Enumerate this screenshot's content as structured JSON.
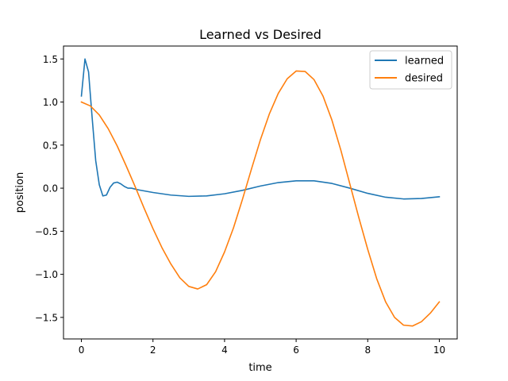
{
  "chart_data": {
    "type": "line",
    "title": "Learned vs Desired",
    "xlabel": "time",
    "ylabel": "position",
    "xlim": [
      -0.5,
      10.5
    ],
    "ylim": [
      -1.75,
      1.65
    ],
    "xticks": [
      0,
      2,
      4,
      6,
      8,
      10
    ],
    "xtick_labels": [
      "0",
      "2",
      "4",
      "6",
      "8",
      "10"
    ],
    "yticks": [
      -1.5,
      -1.0,
      -0.5,
      0.0,
      0.5,
      1.0,
      1.5
    ],
    "ytick_labels": [
      "−1.5",
      "−1.0",
      "−0.5",
      "0.0",
      "0.5",
      "1.0",
      "1.5"
    ],
    "grid": false,
    "legend": "upper right",
    "series": [
      {
        "name": "learned",
        "color": "#1f77b4",
        "x": [
          0,
          0.1,
          0.2,
          0.3,
          0.4,
          0.5,
          0.6,
          0.7,
          0.8,
          0.9,
          1.0,
          1.1,
          1.2,
          1.3,
          1.4,
          1.5,
          1.6,
          1.8,
          2.0,
          2.5,
          3.0,
          3.5,
          4.0,
          4.5,
          5.0,
          5.5,
          6.0,
          6.5,
          7.0,
          7.5,
          8.0,
          8.5,
          9.0,
          9.5,
          10.0
        ],
        "y": [
          1.07,
          1.5,
          1.35,
          0.82,
          0.32,
          0.04,
          -0.09,
          -0.08,
          0.01,
          0.06,
          0.07,
          0.05,
          0.02,
          0.0,
          0.0,
          -0.01,
          -0.02,
          -0.035,
          -0.05,
          -0.08,
          -0.095,
          -0.09,
          -0.065,
          -0.025,
          0.025,
          0.065,
          0.085,
          0.085,
          0.055,
          0.0,
          -0.06,
          -0.105,
          -0.125,
          -0.12,
          -0.1
        ]
      },
      {
        "name": "desired",
        "color": "#ff7f0e",
        "x": [
          0,
          0.25,
          0.5,
          0.75,
          1.0,
          1.25,
          1.5,
          1.75,
          2.0,
          2.25,
          2.5,
          2.75,
          3.0,
          3.25,
          3.5,
          3.75,
          4.0,
          4.25,
          4.5,
          4.75,
          5.0,
          5.25,
          5.5,
          5.75,
          6.0,
          6.25,
          6.5,
          6.75,
          7.0,
          7.25,
          7.5,
          7.75,
          8.0,
          8.25,
          8.5,
          8.75,
          9.0,
          9.25,
          9.5,
          9.75,
          10.0
        ],
        "y": [
          1.0,
          0.955,
          0.85,
          0.69,
          0.49,
          0.26,
          0.02,
          -0.23,
          -0.47,
          -0.69,
          -0.88,
          -1.04,
          -1.14,
          -1.17,
          -1.12,
          -0.97,
          -0.74,
          -0.46,
          -0.13,
          0.22,
          0.56,
          0.86,
          1.1,
          1.27,
          1.36,
          1.355,
          1.26,
          1.07,
          0.79,
          0.44,
          0.05,
          -0.34,
          -0.71,
          -1.05,
          -1.32,
          -1.5,
          -1.59,
          -1.6,
          -1.55,
          -1.45,
          -1.32
        ]
      }
    ]
  }
}
